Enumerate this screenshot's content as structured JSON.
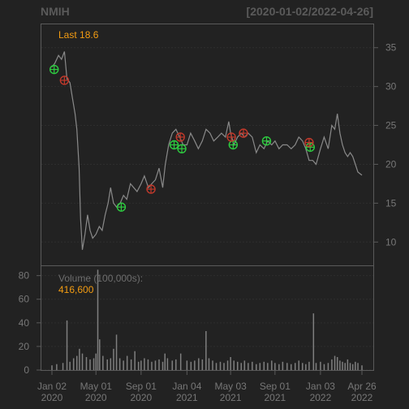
{
  "header": {
    "symbol": "NMIH",
    "date_range": "[2020-01-02/2022-04-26]"
  },
  "price_panel": {
    "last_label": "Last 18.6"
  },
  "volume_panel": {
    "label": "Volume (100,000s):",
    "value": "416,600"
  },
  "colors": {
    "background": "#222222",
    "price_line": "#8a8a8a",
    "volume_bars": "#7f7f7f",
    "buy_marker": "#2ecc40",
    "sell_marker": "#c0392b",
    "accent": "#f39c12"
  },
  "chart_data": [
    {
      "type": "line",
      "title": "NMIH",
      "subtitle": "[2020-01-02/2022-04-26]",
      "y_axis_position": "right",
      "ylim": [
        7,
        38
      ],
      "y_ticks": [
        10,
        15,
        20,
        25,
        30,
        35
      ],
      "x_ticks": [
        {
          "date": "2020-01-02",
          "label1": "Jan 02",
          "label2": "2020"
        },
        {
          "date": "2020-05-01",
          "label1": "May 01",
          "label2": "2020"
        },
        {
          "date": "2020-09-01",
          "label1": "Sep 01",
          "label2": "2020"
        },
        {
          "date": "2021-01-04",
          "label1": "Jan 04",
          "label2": "2021"
        },
        {
          "date": "2021-05-03",
          "label1": "May 03",
          "label2": "2021"
        },
        {
          "date": "2021-09-01",
          "label1": "Sep 01",
          "label2": "2021"
        },
        {
          "date": "2022-01-03",
          "label1": "Jan 03",
          "label2": "2022"
        },
        {
          "date": "2022-04-26",
          "label1": "Apr 26",
          "label2": "2022"
        }
      ],
      "grid": true,
      "series": [
        {
          "values": [
            [
              "2020-01-02",
              32.5
            ],
            [
              "2020-01-10",
              33.0
            ],
            [
              "2020-01-20",
              34.0
            ],
            [
              "2020-01-28",
              33.5
            ],
            [
              "2020-02-05",
              34.5
            ],
            [
              "2020-02-12",
              31.0
            ],
            [
              "2020-02-20",
              30.5
            ],
            [
              "2020-02-27",
              28.5
            ],
            [
              "2020-03-05",
              26.5
            ],
            [
              "2020-03-10",
              24.5
            ],
            [
              "2020-03-16",
              19.5
            ],
            [
              "2020-03-20",
              13.0
            ],
            [
              "2020-03-25",
              9.0
            ],
            [
              "2020-04-01",
              11.0
            ],
            [
              "2020-04-08",
              13.5
            ],
            [
              "2020-04-15",
              11.5
            ],
            [
              "2020-04-22",
              10.5
            ],
            [
              "2020-05-01",
              11.0
            ],
            [
              "2020-05-10",
              12.0
            ],
            [
              "2020-05-18",
              11.5
            ],
            [
              "2020-05-26",
              13.5
            ],
            [
              "2020-06-03",
              15.0
            ],
            [
              "2020-06-10",
              17.0
            ],
            [
              "2020-06-18",
              15.0
            ],
            [
              "2020-06-26",
              14.5
            ],
            [
              "2020-07-06",
              15.0
            ],
            [
              "2020-07-15",
              16.0
            ],
            [
              "2020-07-24",
              15.5
            ],
            [
              "2020-08-03",
              17.5
            ],
            [
              "2020-08-12",
              17.0
            ],
            [
              "2020-08-21",
              16.5
            ],
            [
              "2020-09-01",
              17.5
            ],
            [
              "2020-09-10",
              18.5
            ],
            [
              "2020-09-21",
              17.0
            ],
            [
              "2020-09-30",
              17.5
            ],
            [
              "2020-10-10",
              18.0
            ],
            [
              "2020-10-20",
              19.5
            ],
            [
              "2020-10-30",
              17.0
            ],
            [
              "2020-11-06",
              20.0
            ],
            [
              "2020-11-15",
              22.5
            ],
            [
              "2020-11-25",
              24.0
            ],
            [
              "2020-12-05",
              24.5
            ],
            [
              "2020-12-15",
              23.5
            ],
            [
              "2020-12-25",
              22.5
            ],
            [
              "2021-01-04",
              22.5
            ],
            [
              "2021-01-14",
              24.0
            ],
            [
              "2021-01-25",
              23.0
            ],
            [
              "2021-02-04",
              22.0
            ],
            [
              "2021-02-15",
              23.0
            ],
            [
              "2021-02-25",
              24.5
            ],
            [
              "2021-03-08",
              24.0
            ],
            [
              "2021-03-18",
              23.0
            ],
            [
              "2021-03-29",
              23.5
            ],
            [
              "2021-04-08",
              24.0
            ],
            [
              "2021-04-19",
              23.5
            ],
            [
              "2021-04-28",
              25.5
            ],
            [
              "2021-05-03",
              24.0
            ],
            [
              "2021-05-12",
              22.5
            ],
            [
              "2021-05-22",
              23.5
            ],
            [
              "2021-06-01",
              24.0
            ],
            [
              "2021-06-10",
              23.5
            ],
            [
              "2021-06-20",
              24.0
            ],
            [
              "2021-07-01",
              23.5
            ],
            [
              "2021-07-12",
              21.5
            ],
            [
              "2021-07-22",
              22.5
            ],
            [
              "2021-08-02",
              22.0
            ],
            [
              "2021-08-12",
              23.0
            ],
            [
              "2021-08-23",
              22.5
            ],
            [
              "2021-09-01",
              23.0
            ],
            [
              "2021-09-12",
              22.0
            ],
            [
              "2021-09-22",
              22.5
            ],
            [
              "2021-10-04",
              22.5
            ],
            [
              "2021-10-15",
              22.0
            ],
            [
              "2021-10-26",
              22.5
            ],
            [
              "2021-11-05",
              23.5
            ],
            [
              "2021-11-15",
              23.0
            ],
            [
              "2021-11-24",
              22.0
            ],
            [
              "2021-12-03",
              20.5
            ],
            [
              "2021-12-13",
              20.5
            ],
            [
              "2021-12-22",
              20.0
            ],
            [
              "2022-01-03",
              22.0
            ],
            [
              "2022-01-13",
              23.5
            ],
            [
              "2022-01-24",
              22.0
            ],
            [
              "2022-02-03",
              25.0
            ],
            [
              "2022-02-11",
              24.5
            ],
            [
              "2022-02-18",
              26.5
            ],
            [
              "2022-02-25",
              24.0
            ],
            [
              "2022-03-04",
              22.5
            ],
            [
              "2022-03-11",
              21.5
            ],
            [
              "2022-03-18",
              21.0
            ],
            [
              "2022-03-25",
              21.5
            ],
            [
              "2022-04-01",
              21.0
            ],
            [
              "2022-04-08",
              20.0
            ],
            [
              "2022-04-15",
              19.0
            ],
            [
              "2022-04-26",
              18.6
            ]
          ]
        }
      ],
      "buy_markers": [
        [
          "2020-01-08",
          32.2
        ],
        [
          "2020-07-09",
          14.5
        ],
        [
          "2020-11-30",
          22.5
        ],
        [
          "2020-12-21",
          22.0
        ],
        [
          "2021-05-10",
          22.5
        ],
        [
          "2021-08-09",
          23.0
        ],
        [
          "2021-12-06",
          22.2
        ]
      ],
      "sell_markers": [
        [
          "2020-02-05",
          30.8
        ],
        [
          "2020-09-28",
          16.8
        ],
        [
          "2020-12-17",
          23.5
        ],
        [
          "2021-05-05",
          23.5
        ],
        [
          "2021-06-07",
          24.0
        ],
        [
          "2021-12-03",
          22.8
        ]
      ]
    },
    {
      "type": "bar",
      "title": "Volume (100,000s):",
      "subtitle": "416,600",
      "unit": "100,000s",
      "ylim": [
        0,
        88
      ],
      "y_ticks": [
        0,
        20,
        40,
        60,
        80
      ],
      "series": [
        {
          "values": [
            [
              "2020-01-02",
              4
            ],
            [
              "2020-01-15",
              5
            ],
            [
              "2020-02-01",
              6
            ],
            [
              "2020-02-12",
              42
            ],
            [
              "2020-02-20",
              7
            ],
            [
              "2020-03-01",
              10
            ],
            [
              "2020-03-10",
              12
            ],
            [
              "2020-03-17",
              18
            ],
            [
              "2020-03-25",
              14
            ],
            [
              "2020-04-05",
              11
            ],
            [
              "2020-04-15",
              9
            ],
            [
              "2020-04-25",
              10
            ],
            [
              "2020-05-01",
              14
            ],
            [
              "2020-05-06",
              85
            ],
            [
              "2020-05-11",
              26
            ],
            [
              "2020-05-20",
              12
            ],
            [
              "2020-06-01",
              9
            ],
            [
              "2020-06-10",
              10
            ],
            [
              "2020-06-18",
              18
            ],
            [
              "2020-06-26",
              30
            ],
            [
              "2020-07-05",
              10
            ],
            [
              "2020-07-15",
              8
            ],
            [
              "2020-07-25",
              12
            ],
            [
              "2020-08-05",
              9
            ],
            [
              "2020-08-15",
              16
            ],
            [
              "2020-08-25",
              7
            ],
            [
              "2020-09-01",
              8
            ],
            [
              "2020-09-10",
              10
            ],
            [
              "2020-09-20",
              9
            ],
            [
              "2020-09-30",
              7
            ],
            [
              "2020-10-10",
              8
            ],
            [
              "2020-10-20",
              9
            ],
            [
              "2020-10-30",
              7
            ],
            [
              "2020-11-05",
              14
            ],
            [
              "2020-11-12",
              10
            ],
            [
              "2020-11-25",
              8
            ],
            [
              "2020-12-05",
              9
            ],
            [
              "2020-12-18",
              14
            ],
            [
              "2021-01-04",
              8
            ],
            [
              "2021-01-15",
              7
            ],
            [
              "2021-01-25",
              8
            ],
            [
              "2021-02-05",
              10
            ],
            [
              "2021-02-15",
              9
            ],
            [
              "2021-02-25",
              33
            ],
            [
              "2021-03-05",
              10
            ],
            [
              "2021-03-15",
              8
            ],
            [
              "2021-03-25",
              6
            ],
            [
              "2021-04-05",
              7
            ],
            [
              "2021-04-15",
              6
            ],
            [
              "2021-04-25",
              8
            ],
            [
              "2021-05-03",
              11
            ],
            [
              "2021-05-12",
              8
            ],
            [
              "2021-05-22",
              7
            ],
            [
              "2021-06-01",
              6
            ],
            [
              "2021-06-10",
              8
            ],
            [
              "2021-06-20",
              6
            ],
            [
              "2021-07-01",
              7
            ],
            [
              "2021-07-12",
              5
            ],
            [
              "2021-07-22",
              6
            ],
            [
              "2021-08-02",
              7
            ],
            [
              "2021-08-12",
              6
            ],
            [
              "2021-08-23",
              8
            ],
            [
              "2021-09-01",
              6
            ],
            [
              "2021-09-12",
              5
            ],
            [
              "2021-09-22",
              7
            ],
            [
              "2021-10-04",
              6
            ],
            [
              "2021-10-15",
              5
            ],
            [
              "2021-10-26",
              6
            ],
            [
              "2021-11-05",
              8
            ],
            [
              "2021-11-15",
              6
            ],
            [
              "2021-11-24",
              5
            ],
            [
              "2021-12-03",
              7
            ],
            [
              "2021-12-15",
              48
            ],
            [
              "2021-12-22",
              6
            ],
            [
              "2022-01-03",
              7
            ],
            [
              "2022-01-13",
              5
            ],
            [
              "2022-01-24",
              6
            ],
            [
              "2022-02-03",
              9
            ],
            [
              "2022-02-11",
              12
            ],
            [
              "2022-02-18",
              11
            ],
            [
              "2022-02-25",
              8
            ],
            [
              "2022-03-04",
              7
            ],
            [
              "2022-03-11",
              6
            ],
            [
              "2022-03-18",
              9
            ],
            [
              "2022-03-25",
              6
            ],
            [
              "2022-04-01",
              5
            ],
            [
              "2022-04-08",
              7
            ],
            [
              "2022-04-15",
              6
            ],
            [
              "2022-04-26",
              4
            ]
          ]
        }
      ]
    }
  ]
}
